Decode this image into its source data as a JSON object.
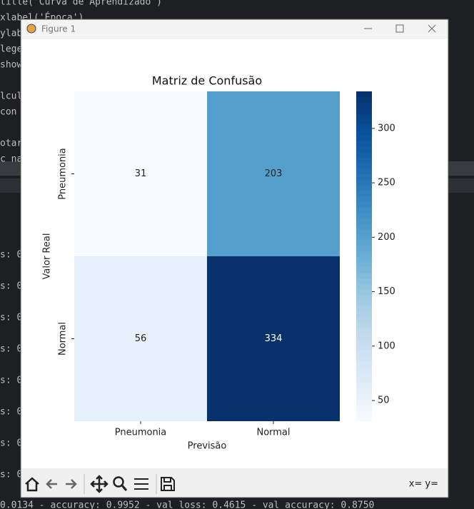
{
  "background": {
    "code_lines": [
      "title('Curva de Aprendizado')",
      "xlabel('Época')",
      "ylab",
      "lege",
      "show",
      "lcul",
      " con",
      "otar",
      "c na"
    ],
    "log_lines": [
      "s: 0",
      "s: 0",
      "s: 0",
      "s: 0",
      "s: 0",
      "s: 0",
      "s: 0",
      "s: 0"
    ],
    "status_line": "0.0134 - accuracy: 0.9952 - val_loss: 0.4615 - val_accuracy: 0.8750"
  },
  "window": {
    "title": "Figure 1",
    "coords": "x= y="
  },
  "chart_data": {
    "type": "heatmap",
    "title": "Matriz de Confusão",
    "x_label": "Previsão",
    "y_label": "Valor Real",
    "x_categories": [
      "Pneumonia",
      "Normal"
    ],
    "y_categories": [
      "Pneumonia",
      "Normal"
    ],
    "values": [
      [
        31,
        203
      ],
      [
        56,
        334
      ]
    ],
    "colormap": "Blues",
    "clim": [
      31,
      334
    ],
    "cticks": [
      50,
      100,
      150,
      200,
      250,
      300
    ]
  }
}
